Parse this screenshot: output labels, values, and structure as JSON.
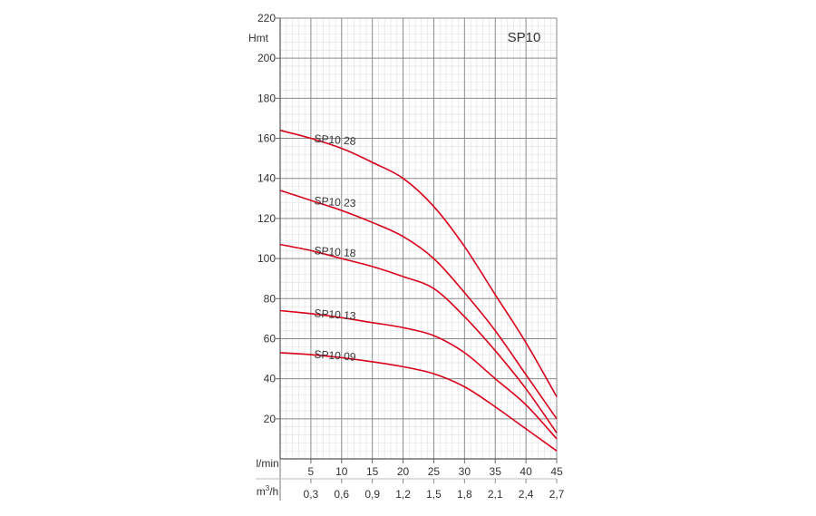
{
  "chart_data": {
    "type": "line",
    "title": "SP10",
    "ylabel": "Hmt",
    "xlabel_primary": "l/min",
    "xlabel_secondary": "m³/h",
    "xlabel_secondary_base": "m",
    "xlabel_secondary_sup": "3",
    "xlabel_secondary_tail": "/h",
    "xlim": [
      0,
      45
    ],
    "ylim": [
      0,
      220
    ],
    "y_ticks": [
      "20",
      "40",
      "60",
      "80",
      "100",
      "120",
      "140",
      "160",
      "180",
      "200",
      "220"
    ],
    "x_ticks_primary": [
      "5",
      "10",
      "15",
      "20",
      "25",
      "30",
      "35",
      "40",
      "45"
    ],
    "x_ticks_secondary": [
      "0,3",
      "0,6",
      "0,9",
      "1,2",
      "1,5",
      "1,8",
      "2,1",
      "2,4",
      "2,7"
    ],
    "grid": true,
    "series_color": "#d9001a",
    "series": [
      {
        "name": "SP10 28",
        "x": [
          0,
          5,
          10,
          15,
          20,
          25,
          30,
          35,
          40,
          45
        ],
        "y": [
          164,
          160,
          155,
          148,
          140,
          126,
          106,
          82,
          58,
          31
        ]
      },
      {
        "name": "SP10 23",
        "x": [
          0,
          5,
          10,
          15,
          20,
          25,
          30,
          35,
          40,
          45
        ],
        "y": [
          134,
          129,
          124,
          118,
          111,
          100,
          83,
          64,
          42,
          20
        ]
      },
      {
        "name": "SP10 18",
        "x": [
          0,
          5,
          10,
          15,
          20,
          25,
          30,
          35,
          40,
          45
        ],
        "y": [
          107,
          104,
          100,
          96,
          91,
          85,
          71,
          54,
          35,
          13
        ]
      },
      {
        "name": "SP10 13",
        "x": [
          0,
          5,
          10,
          15,
          20,
          25,
          30,
          35,
          40,
          45
        ],
        "y": [
          74,
          72.5,
          70.5,
          68,
          65.5,
          61.5,
          53,
          40,
          27,
          10
        ]
      },
      {
        "name": "SP10 09",
        "x": [
          0,
          5,
          10,
          15,
          20,
          25,
          30,
          35,
          40,
          45
        ],
        "y": [
          53,
          52,
          50.5,
          48.5,
          46,
          42.5,
          36,
          26,
          15,
          4
        ]
      }
    ]
  }
}
